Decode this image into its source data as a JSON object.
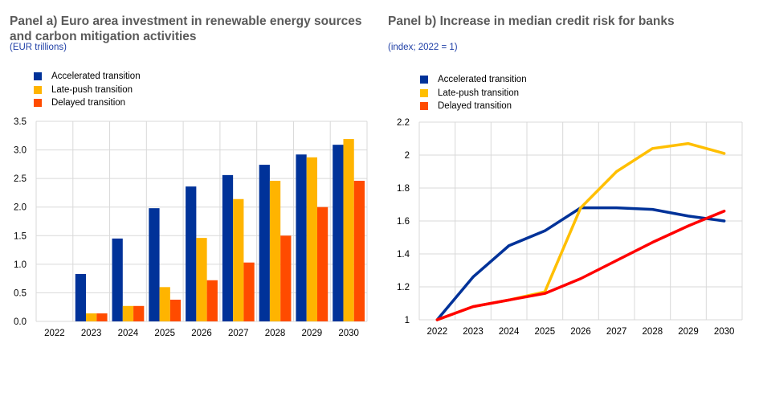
{
  "chart_data": [
    {
      "type": "bar",
      "title": "Panel a) Euro area investment in renewable energy sources and carbon mitigation activities",
      "subtitle": "(EUR trillions)",
      "categories": [
        "2022",
        "2023",
        "2024",
        "2025",
        "2026",
        "2027",
        "2028",
        "2029",
        "2030"
      ],
      "ylim": [
        0,
        3.5
      ],
      "yticks": [
        "0.0",
        "0.5",
        "1.0",
        "1.5",
        "2.0",
        "2.5",
        "3.0",
        "3.5"
      ],
      "grid": true,
      "legend": "top-left",
      "series": [
        {
          "name": "Accelerated transition",
          "color": "#003299",
          "values": [
            0,
            0.83,
            1.45,
            1.98,
            2.36,
            2.56,
            2.74,
            2.92,
            3.09
          ]
        },
        {
          "name": "Late-push transition",
          "color": "#ffb400",
          "values": [
            0,
            0.14,
            0.27,
            0.6,
            1.46,
            2.14,
            2.46,
            2.87,
            3.19
          ]
        },
        {
          "name": "Delayed transition",
          "color": "#ff4b00",
          "values": [
            0,
            0.14,
            0.27,
            0.38,
            0.72,
            1.03,
            1.5,
            2.0,
            2.46
          ]
        }
      ]
    },
    {
      "type": "line",
      "title": "Panel b) Increase in median credit risk for banks",
      "subtitle": "(index; 2022 = 1)",
      "categories": [
        "2022",
        "2023",
        "2024",
        "2025",
        "2026",
        "2027",
        "2028",
        "2029",
        "2030"
      ],
      "ylim": [
        1,
        2.2
      ],
      "yticks": [
        "1",
        "1.2",
        "1.4",
        "1.6",
        "1.8",
        "2",
        "2.2"
      ],
      "grid": true,
      "legend": "top-left",
      "series": [
        {
          "name": "Accelerated transition",
          "color": "#003299",
          "values": [
            1.0,
            1.26,
            1.45,
            1.54,
            1.68,
            1.68,
            1.67,
            1.63,
            1.6
          ]
        },
        {
          "name": "Late-push transition",
          "color": "#ffbf00",
          "values": [
            1.0,
            1.08,
            1.12,
            1.17,
            1.68,
            1.9,
            2.04,
            2.07,
            2.01
          ]
        },
        {
          "name": "Delayed transition",
          "color": "#ff0000",
          "values": [
            1.0,
            1.08,
            1.12,
            1.16,
            1.25,
            1.36,
            1.47,
            1.57,
            1.66
          ]
        }
      ]
    }
  ]
}
